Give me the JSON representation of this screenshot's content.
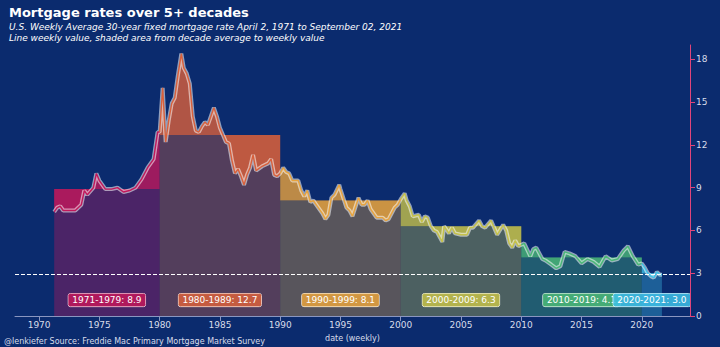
{
  "chart_data": {
    "type": "line",
    "title": "Mortgage rates over 5+ decades",
    "subtitle": [
      "U.S. Weekly Average 30-year fixed mortgage rate April 2, 1971 to September 02, 2021",
      "Line weekly value, shaded area from decade average to weekly value"
    ],
    "xlabel": "date (weekly)",
    "caption": "@lenkiefer Source: Freddie Mac Primary Mortgage Market Survey",
    "x": [
      1971.25,
      1971.5,
      1971.75,
      1972,
      1972.5,
      1973,
      1973.5,
      1973.75,
      1974,
      1974.5,
      1974.75,
      1975,
      1975.5,
      1976,
      1976.5,
      1977,
      1977.5,
      1978,
      1978.5,
      1979,
      1979.5,
      1979.83,
      1980,
      1980.25,
      1980.5,
      1980.75,
      1981,
      1981.25,
      1981.5,
      1981.8,
      1982,
      1982.25,
      1982.5,
      1982.75,
      1983,
      1983.25,
      1983.5,
      1983.75,
      1984,
      1984.5,
      1984.75,
      1985,
      1985.5,
      1985.75,
      1986,
      1986.25,
      1986.5,
      1986.75,
      1987,
      1987.25,
      1987.5,
      1987.75,
      1988,
      1988.5,
      1989,
      1989.25,
      1989.5,
      1989.75,
      1990,
      1990.25,
      1990.5,
      1990.75,
      1991,
      1991.5,
      1991.75,
      1992,
      1992.25,
      1992.5,
      1992.75,
      1993,
      1993.5,
      1993.75,
      1994,
      1994.25,
      1994.5,
      1994.9,
      1995,
      1995.5,
      1995.75,
      1996,
      1996.5,
      1996.75,
      1997,
      1997.25,
      1997.5,
      1997.75,
      1998,
      1998.5,
      1998.75,
      1999,
      1999.5,
      1999.75,
      2000,
      2000.33,
      2000.5,
      2000.75,
      2001,
      2001.5,
      2001.75,
      2002,
      2002.25,
      2002.5,
      2002.75,
      2003,
      2003.45,
      2003.6,
      2004,
      2004.25,
      2004.5,
      2005,
      2005.5,
      2005.75,
      2006,
      2006.5,
      2006.75,
      2007,
      2007.5,
      2007.75,
      2008,
      2008.5,
      2008.75,
      2009,
      2009.25,
      2009.5,
      2009.75,
      2010,
      2010.25,
      2010.75,
      2011,
      2011.25,
      2011.75,
      2012,
      2012.5,
      2012.9,
      2013.25,
      2013.6,
      2014,
      2014.5,
      2015,
      2015.5,
      2016,
      2016.5,
      2017,
      2017.5,
      2018,
      2018.5,
      2018.85,
      2019.25,
      2019.7,
      2020,
      2020.25,
      2020.5,
      2020.75,
      2021,
      2021.25,
      2021.5,
      2021.67
    ],
    "values": [
      7.3,
      7.6,
      7.7,
      7.4,
      7.4,
      7.4,
      7.8,
      8.8,
      8.5,
      9.0,
      10.0,
      9.5,
      8.9,
      8.9,
      9.0,
      8.7,
      8.8,
      9.0,
      9.6,
      10.4,
      11.0,
      12.9,
      12.9,
      16.0,
      12.2,
      13.7,
      14.9,
      15.3,
      16.8,
      18.4,
      17.4,
      17.0,
      16.3,
      14.0,
      13.0,
      12.9,
      13.3,
      13.6,
      13.4,
      14.6,
      14.0,
      13.2,
      12.2,
      12.1,
      10.9,
      10.0,
      10.3,
      9.8,
      9.2,
      9.9,
      10.4,
      11.3,
      10.2,
      10.5,
      10.7,
      11.0,
      9.9,
      9.8,
      10.0,
      10.4,
      10.1,
      10.0,
      9.5,
      9.5,
      8.8,
      8.4,
      8.8,
      8.0,
      8.1,
      7.8,
      7.2,
      6.8,
      7.1,
      8.3,
      8.5,
      9.2,
      8.9,
      7.6,
      7.4,
      7.0,
      8.3,
      7.8,
      7.8,
      8.1,
      7.5,
      7.2,
      6.9,
      6.9,
      6.7,
      6.8,
      7.6,
      7.8,
      8.2,
      8.6,
      8.1,
      7.7,
      7.0,
      7.1,
      6.6,
      7.0,
      6.9,
      6.3,
      6.0,
      5.9,
      5.2,
      6.3,
      5.8,
      6.2,
      5.8,
      5.7,
      5.7,
      6.2,
      6.2,
      6.7,
      6.3,
      6.2,
      6.7,
      6.2,
      5.7,
      6.4,
      6.0,
      5.1,
      4.8,
      5.3,
      4.9,
      5.0,
      5.1,
      4.2,
      4.7,
      4.8,
      4.0,
      3.9,
      3.6,
      3.35,
      3.5,
      4.5,
      4.4,
      4.2,
      3.7,
      4.0,
      3.8,
      3.45,
      4.2,
      3.9,
      4.0,
      4.6,
      4.9,
      4.2,
      3.6,
      3.7,
      3.4,
      3.0,
      2.8,
      2.7,
      3.1,
      2.9,
      2.9
    ],
    "decades": [
      {
        "label": "1971-1979: 8.9",
        "start": 1971.25,
        "end": 1980,
        "value": 8.9,
        "color": "#c2185b"
      },
      {
        "label": "1980-1989: 12.7",
        "start": 1980,
        "end": 1990,
        "value": 12.7,
        "color": "#d9603b"
      },
      {
        "label": "1990-1999: 8.1",
        "start": 1990,
        "end": 2000,
        "value": 8.1,
        "color": "#e8a33d"
      },
      {
        "label": "2000-2009: 6.3",
        "start": 2000,
        "end": 2010,
        "value": 6.3,
        "color": "#c5c24a"
      },
      {
        "label": "2010-2019: 4.1",
        "start": 2010,
        "end": 2020,
        "value": 4.1,
        "color": "#4bb877"
      },
      {
        "label": "2020-2021: 3.0",
        "start": 2020,
        "end": 2021.67,
        "value": 3.0,
        "color": "#3ec1e8"
      }
    ],
    "reference_line": {
      "value": 2.9,
      "line_style": "dashed"
    },
    "xlim": [
      1968,
      2024
    ],
    "xticks": [
      1970,
      1975,
      1980,
      1985,
      1990,
      1995,
      2000,
      2005,
      2010,
      2015,
      2020
    ],
    "ylim": [
      0,
      19
    ],
    "yticks": [
      0,
      3,
      6,
      9,
      12,
      15,
      18
    ],
    "grid": false
  }
}
